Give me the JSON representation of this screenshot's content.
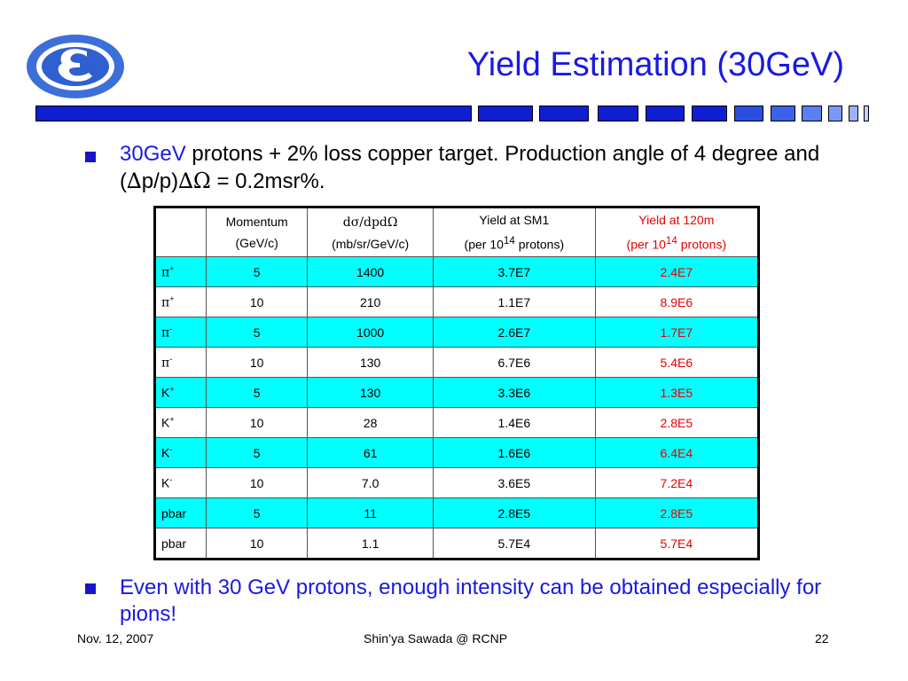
{
  "slide": {
    "title": "Yield Estimation (30GeV)",
    "bullets": [
      {
        "highlight": "30GeV",
        "text_a": " protons + 2% loss copper target.  Production angle of 4 degree and (",
        "delta1": "∆",
        "text_b": "p/p)",
        "delta2": "∆Ω",
        "text_c": " = 0.2msr%."
      },
      {
        "text": "Even with 30 GeV protons, enough intensity can be obtained especially for pions!"
      }
    ],
    "accent_color": "#1a1ae0",
    "highlight_color": "#00ffff",
    "red_color": "#e60000"
  },
  "table": {
    "headers": {
      "momentum": [
        "Momentum",
        "(GeV/c)"
      ],
      "dsigma": [
        "dσ/dpdΩ",
        "(mb/sr/GeV/c)"
      ],
      "sm1": [
        "Yield at SM1",
        "(per 10",
        "14",
        " protons)"
      ],
      "m120": [
        "Yield at 120m",
        "(per 10",
        "14",
        " protons)"
      ]
    },
    "rows": [
      {
        "particle": "π",
        "charge": "+",
        "momentum": "5",
        "dsigma": "1400",
        "sm1": "3.7E7",
        "m120": "2.4E7"
      },
      {
        "particle": "π",
        "charge": "+",
        "momentum": "10",
        "dsigma": "210",
        "sm1": "1.1E7",
        "m120": "8.9E6"
      },
      {
        "particle": "π",
        "charge": "-",
        "momentum": "5",
        "dsigma": "1000",
        "sm1": "2.6E7",
        "m120": "1.7E7"
      },
      {
        "particle": "π",
        "charge": "-",
        "momentum": "10",
        "dsigma": "130",
        "sm1": "6.7E6",
        "m120": "5.4E6"
      },
      {
        "particle": "K",
        "charge": "+",
        "momentum": "5",
        "dsigma": "130",
        "sm1": "3.3E6",
        "m120": "1.3E5"
      },
      {
        "particle": "K",
        "charge": "+",
        "momentum": "10",
        "dsigma": "28",
        "sm1": "1.4E6",
        "m120": "2.8E5"
      },
      {
        "particle": "K",
        "charge": "-",
        "momentum": "5",
        "dsigma": "61",
        "sm1": "1.6E6",
        "m120": "6.4E4"
      },
      {
        "particle": "K",
        "charge": "-",
        "momentum": "10",
        "dsigma": "7.0",
        "sm1": "3.6E5",
        "m120": "7.2E4"
      },
      {
        "particle": "pbar",
        "charge": "",
        "momentum": "5",
        "dsigma": "11",
        "sm1": "2.8E5",
        "m120": "2.8E5"
      },
      {
        "particle": "pbar",
        "charge": "",
        "momentum": "10",
        "dsigma": "1.1",
        "sm1": "5.7E4",
        "m120": "5.7E4"
      }
    ]
  },
  "footer": {
    "date": "Nov. 12, 2007",
    "author": "Shin’ya Sawada @ RCNP",
    "page": "22"
  }
}
